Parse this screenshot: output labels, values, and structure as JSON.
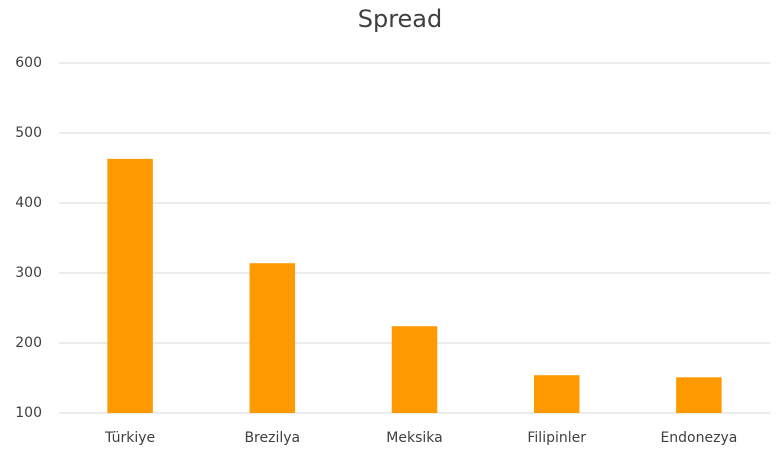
{
  "chart_data": {
    "type": "bar",
    "title": "Spread",
    "categories": [
      "Türkiye",
      "Brezilya",
      "Meksika",
      "Filipinler",
      "Endonezya"
    ],
    "values": [
      463,
      314,
      224,
      154,
      151
    ],
    "color": "#ff9900",
    "ylim": [
      100,
      600
    ],
    "yticks": [
      100,
      200,
      300,
      400,
      500,
      600
    ],
    "grid": true
  }
}
